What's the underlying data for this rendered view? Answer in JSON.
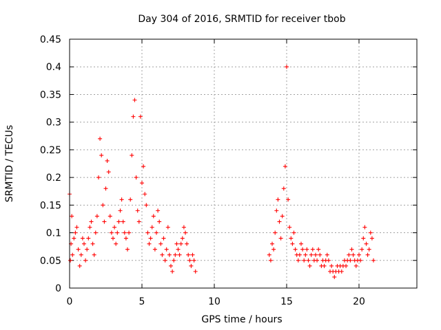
{
  "chart_data": {
    "type": "scatter",
    "title": "Day 304 of 2016, SRMTID for receiver tbob",
    "xlabel": "GPS time / hours",
    "ylabel": "SRMTID / TECUs",
    "xlim": [
      0,
      24
    ],
    "ylim": [
      0,
      0.45
    ],
    "xticks": [
      0,
      5,
      10,
      15,
      20
    ],
    "xtick_labels": [
      "0",
      "5",
      "10",
      "15",
      "20"
    ],
    "yticks": [
      0,
      0.05,
      0.1,
      0.15,
      0.2,
      0.25,
      0.3,
      0.35,
      0.4,
      0.45
    ],
    "ytick_labels": [
      "0",
      "0.05",
      "0.1",
      "0.15",
      "0.2",
      "0.25",
      "0.3",
      "0.35",
      "0.4",
      "0.45"
    ],
    "grid": true,
    "marker": "+",
    "series": [
      {
        "name": "SRMTID",
        "color": "#ff0000",
        "x": [
          0.0,
          0.05,
          0.1,
          0.15,
          0.2,
          0.3,
          0.4,
          0.5,
          0.6,
          0.7,
          0.8,
          0.9,
          1.0,
          1.1,
          1.2,
          1.3,
          1.4,
          1.5,
          1.6,
          1.7,
          1.8,
          1.9,
          2.0,
          2.1,
          2.2,
          2.3,
          2.4,
          2.5,
          2.6,
          2.7,
          2.8,
          2.9,
          3.0,
          3.1,
          3.2,
          3.3,
          3.4,
          3.5,
          3.6,
          3.7,
          3.8,
          3.9,
          4.0,
          4.1,
          4.2,
          4.3,
          4.4,
          4.5,
          4.6,
          4.7,
          4.8,
          4.9,
          5.0,
          5.1,
          5.2,
          5.3,
          5.4,
          5.5,
          5.6,
          5.7,
          5.8,
          5.9,
          6.0,
          6.1,
          6.2,
          6.3,
          6.4,
          6.5,
          6.6,
          6.7,
          6.8,
          6.9,
          7.0,
          7.1,
          7.2,
          7.3,
          7.4,
          7.5,
          7.6,
          7.7,
          7.8,
          7.9,
          8.0,
          8.1,
          8.2,
          8.3,
          8.4,
          8.5,
          8.6,
          8.7,
          13.8,
          13.9,
          14.0,
          14.1,
          14.2,
          14.3,
          14.4,
          14.5,
          14.6,
          14.7,
          14.8,
          14.9,
          15.0,
          15.1,
          15.2,
          15.3,
          15.4,
          15.5,
          15.6,
          15.7,
          15.8,
          15.9,
          16.0,
          16.1,
          16.2,
          16.3,
          16.4,
          16.5,
          16.6,
          16.7,
          16.8,
          16.9,
          17.0,
          17.1,
          17.2,
          17.3,
          17.4,
          17.5,
          17.6,
          17.7,
          17.8,
          17.9,
          18.0,
          18.1,
          18.2,
          18.3,
          18.4,
          18.5,
          18.6,
          18.7,
          18.8,
          18.9,
          19.0,
          19.1,
          19.2,
          19.3,
          19.4,
          19.5,
          19.6,
          19.7,
          19.8,
          19.9,
          20.0,
          20.1,
          20.2,
          20.3,
          20.4,
          20.5,
          20.6,
          20.7,
          20.8,
          20.9,
          21.0
        ],
        "y": [
          0.17,
          0.05,
          0.08,
          0.13,
          0.06,
          0.09,
          0.1,
          0.11,
          0.07,
          0.04,
          0.06,
          0.09,
          0.08,
          0.05,
          0.07,
          0.09,
          0.11,
          0.12,
          0.08,
          0.06,
          0.1,
          0.13,
          0.2,
          0.27,
          0.24,
          0.15,
          0.12,
          0.18,
          0.23,
          0.21,
          0.13,
          0.1,
          0.09,
          0.11,
          0.08,
          0.1,
          0.12,
          0.14,
          0.16,
          0.12,
          0.1,
          0.09,
          0.07,
          0.1,
          0.16,
          0.24,
          0.31,
          0.34,
          0.2,
          0.14,
          0.12,
          0.31,
          0.19,
          0.22,
          0.17,
          0.15,
          0.1,
          0.08,
          0.09,
          0.11,
          0.13,
          0.07,
          0.1,
          0.14,
          0.12,
          0.08,
          0.06,
          0.09,
          0.05,
          0.07,
          0.11,
          0.06,
          0.04,
          0.03,
          0.05,
          0.06,
          0.08,
          0.07,
          0.06,
          0.08,
          0.09,
          0.11,
          0.1,
          0.08,
          0.06,
          0.05,
          0.04,
          0.06,
          0.05,
          0.03,
          0.06,
          0.05,
          0.08,
          0.07,
          0.1,
          0.14,
          0.16,
          0.12,
          0.09,
          0.13,
          0.18,
          0.22,
          0.4,
          0.16,
          0.11,
          0.09,
          0.08,
          0.1,
          0.07,
          0.06,
          0.05,
          0.06,
          0.08,
          0.07,
          0.05,
          0.06,
          0.07,
          0.05,
          0.04,
          0.06,
          0.07,
          0.05,
          0.06,
          0.05,
          0.07,
          0.06,
          0.04,
          0.05,
          0.04,
          0.05,
          0.06,
          0.05,
          0.03,
          0.04,
          0.03,
          0.02,
          0.03,
          0.04,
          0.03,
          0.04,
          0.03,
          0.04,
          0.05,
          0.04,
          0.05,
          0.06,
          0.05,
          0.07,
          0.06,
          0.05,
          0.04,
          0.05,
          0.06,
          0.05,
          0.07,
          0.09,
          0.11,
          0.08,
          0.06,
          0.07,
          0.1,
          0.09,
          0.05
        ]
      }
    ]
  }
}
